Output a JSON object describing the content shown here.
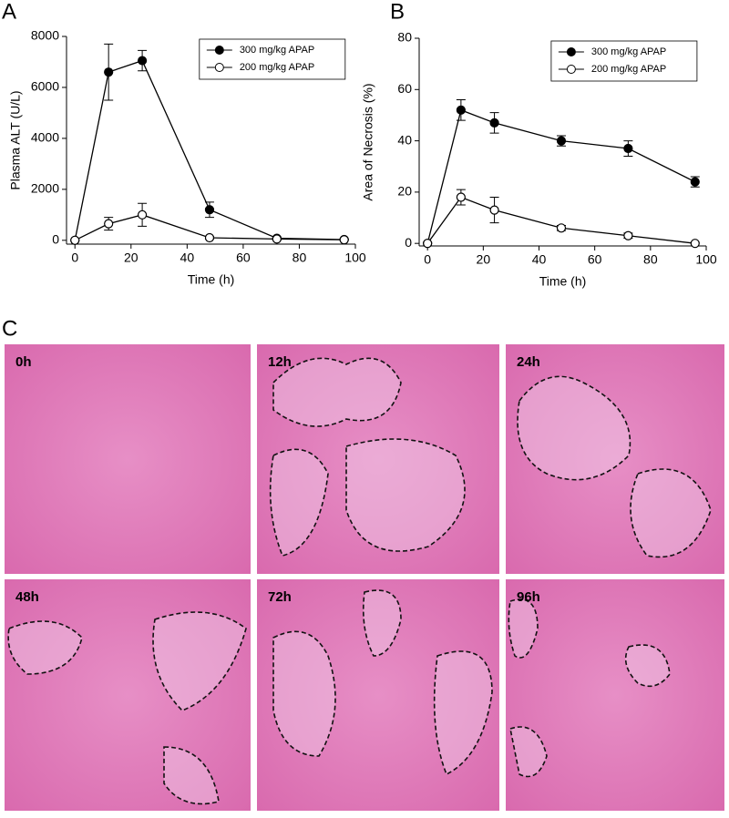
{
  "chart_data": [
    {
      "type": "line",
      "panel": "A",
      "x_label": "Time (h)",
      "y_label": "Plasma ALT (U/L)",
      "x": [
        0,
        12,
        24,
        48,
        72,
        96
      ],
      "series": [
        {
          "name": "300 mg/kg APAP",
          "color": "#000000",
          "marker_face": "#000000",
          "values": [
            0,
            6600,
            7050,
            1200,
            80,
            30
          ],
          "errors": [
            0,
            1100,
            400,
            300,
            50,
            20
          ]
        },
        {
          "name": "200 mg/kg APAP",
          "color": "#000000",
          "marker_face": "#ffffff",
          "values": [
            0,
            650,
            1000,
            100,
            50,
            20
          ],
          "errors": [
            0,
            250,
            450,
            50,
            30,
            10
          ]
        }
      ],
      "xlim": [
        -3,
        100
      ],
      "xticks": [
        0,
        20,
        40,
        60,
        80,
        100
      ],
      "ylim": [
        -150,
        8000
      ],
      "yticks": [
        0,
        2000,
        4000,
        6000,
        8000
      ],
      "legend": "upper right"
    },
    {
      "type": "line",
      "panel": "B",
      "x_label": "Time (h)",
      "y_label": "Area of Necrosis (%)",
      "x": [
        0,
        12,
        24,
        48,
        72,
        96
      ],
      "series": [
        {
          "name": "300 mg/kg APAP",
          "color": "#000000",
          "marker_face": "#000000",
          "values": [
            0,
            52,
            47,
            40,
            37,
            24
          ],
          "errors": [
            0,
            4,
            4,
            2,
            3,
            2
          ]
        },
        {
          "name": "200 mg/kg APAP",
          "color": "#000000",
          "marker_face": "#ffffff",
          "values": [
            0,
            18,
            13,
            6,
            3,
            0
          ],
          "errors": [
            0,
            3,
            5,
            1,
            1,
            0
          ]
        }
      ],
      "xlim": [
        -3,
        100
      ],
      "xticks": [
        0,
        20,
        40,
        60,
        80,
        100
      ],
      "ylim": [
        -1,
        80
      ],
      "yticks": [
        0,
        20,
        40,
        60,
        80
      ],
      "legend": "upper right"
    }
  ],
  "histology": {
    "panel": "C",
    "images": [
      {
        "label": "0h"
      },
      {
        "label": "12h"
      },
      {
        "label": "24h"
      },
      {
        "label": "48h"
      },
      {
        "label": "72h"
      },
      {
        "label": "96h"
      }
    ]
  }
}
